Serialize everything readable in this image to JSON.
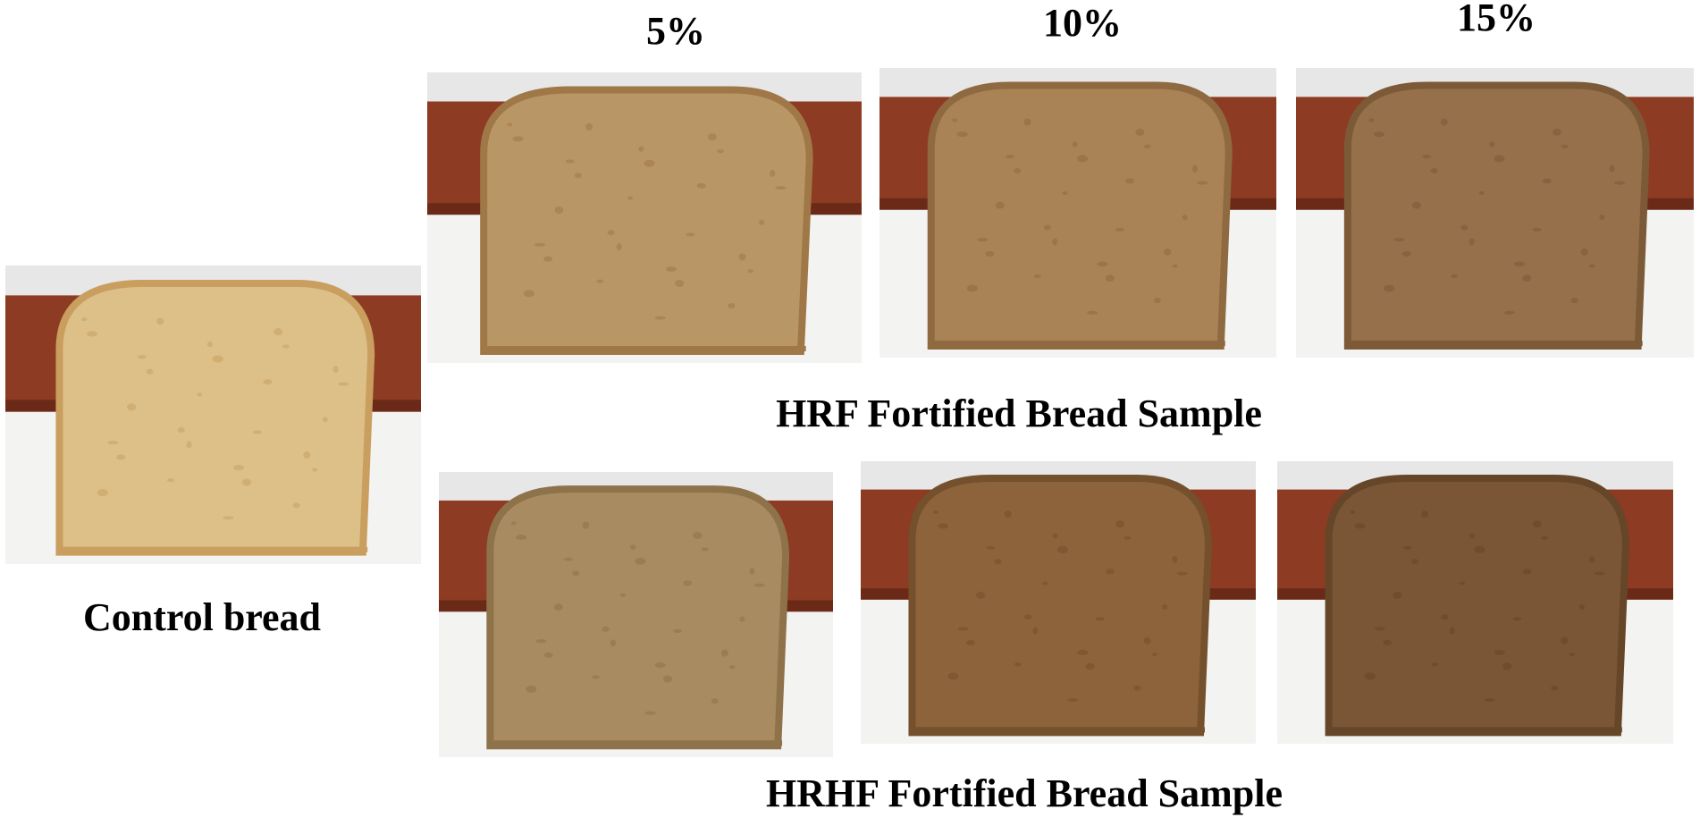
{
  "columns": [
    "5%",
    "10%",
    "15%"
  ],
  "control": {
    "label": "Control bread"
  },
  "rows": [
    {
      "label": "HRF Fortified Bread Sample"
    },
    {
      "label": "HRHF Fortified Bread Sample"
    }
  ]
}
